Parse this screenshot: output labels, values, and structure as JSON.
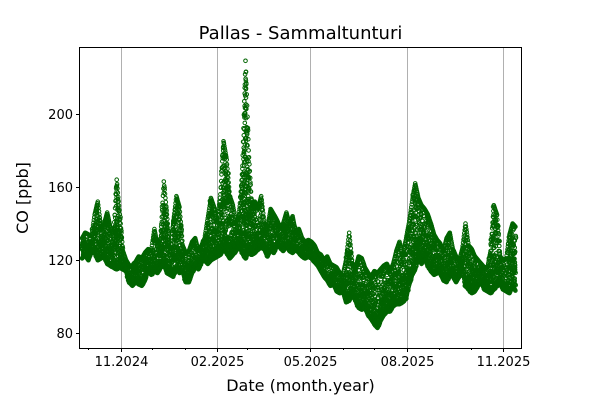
{
  "chart_data": {
    "type": "scatter",
    "title": "Pallas - Sammaltunturi",
    "xlabel": "Date (month.year)",
    "ylabel": "CO [ppb]",
    "x_range": [
      "2024-09-23",
      "2025-11-18"
    ],
    "ylim": [
      72,
      236
    ],
    "x_ticks": [
      "2024-11-01",
      "2025-02-01",
      "2025-05-01",
      "2025-08-01",
      "2025-11-01"
    ],
    "x_tick_labels": [
      "11.2024",
      "02.2025",
      "05.2025",
      "08.2025",
      "11.2025"
    ],
    "y_ticks": [
      80,
      120,
      160,
      200
    ],
    "y_tick_labels": [
      "80",
      "120",
      "160",
      "200"
    ],
    "grid": "vertical-major",
    "marker": "hollow-circle",
    "series": [
      {
        "color": "#006400",
        "x": [
          "2024-09-25",
          "2024-09-28",
          "2024-10-01",
          "2024-10-04",
          "2024-10-07",
          "2024-10-10",
          "2024-10-13",
          "2024-10-16",
          "2024-10-19",
          "2024-10-22",
          "2024-10-25",
          "2024-10-28",
          "2024-10-31",
          "2024-11-03",
          "2024-11-06",
          "2024-11-09",
          "2024-11-12",
          "2024-11-15",
          "2024-11-18",
          "2024-11-21",
          "2024-11-24",
          "2024-11-27",
          "2024-11-30",
          "2024-12-03",
          "2024-12-06",
          "2024-12-09",
          "2024-12-12",
          "2024-12-15",
          "2024-12-18",
          "2024-12-21",
          "2024-12-24",
          "2024-12-27",
          "2024-12-30",
          "2025-01-02",
          "2025-01-05",
          "2025-01-08",
          "2025-01-11",
          "2025-01-14",
          "2025-01-17",
          "2025-01-20",
          "2025-01-23",
          "2025-01-26",
          "2025-01-29",
          "2025-02-01",
          "2025-02-04",
          "2025-02-07",
          "2025-02-10",
          "2025-02-13",
          "2025-02-16",
          "2025-02-19",
          "2025-02-22",
          "2025-02-25",
          "2025-02-28",
          "2025-03-03",
          "2025-03-06",
          "2025-03-09",
          "2025-03-12",
          "2025-03-15",
          "2025-03-18",
          "2025-03-21",
          "2025-03-24",
          "2025-03-27",
          "2025-03-30",
          "2025-04-02",
          "2025-04-05",
          "2025-04-08",
          "2025-04-11",
          "2025-04-14",
          "2025-04-17",
          "2025-04-20",
          "2025-04-23",
          "2025-04-26",
          "2025-04-29",
          "2025-05-02",
          "2025-05-05",
          "2025-05-08",
          "2025-05-11",
          "2025-05-14",
          "2025-05-17",
          "2025-05-20",
          "2025-05-23",
          "2025-05-26",
          "2025-05-29",
          "2025-06-01",
          "2025-06-04",
          "2025-06-07",
          "2025-06-10",
          "2025-06-13",
          "2025-06-16",
          "2025-06-19",
          "2025-06-22",
          "2025-06-25",
          "2025-06-28",
          "2025-07-01",
          "2025-07-04",
          "2025-07-07",
          "2025-07-10",
          "2025-07-13",
          "2025-07-16",
          "2025-07-19",
          "2025-07-22",
          "2025-07-25",
          "2025-07-28",
          "2025-07-31",
          "2025-08-03",
          "2025-08-06",
          "2025-08-09",
          "2025-08-12",
          "2025-08-15",
          "2025-08-18",
          "2025-08-21",
          "2025-08-24",
          "2025-08-27",
          "2025-08-30",
          "2025-09-02",
          "2025-09-05",
          "2025-09-08",
          "2025-09-11",
          "2025-09-14",
          "2025-09-17",
          "2025-09-20",
          "2025-09-23",
          "2025-09-26",
          "2025-09-29",
          "2025-10-02",
          "2025-10-05",
          "2025-10-08",
          "2025-10-11",
          "2025-10-14",
          "2025-10-17",
          "2025-10-20",
          "2025-10-23",
          "2025-10-26",
          "2025-10-29",
          "2025-11-01",
          "2025-11-04",
          "2025-11-07",
          "2025-11-10",
          "2025-11-13"
        ],
        "low": [
          121,
          123,
          120,
          125,
          124,
          120,
          121,
          122,
          118,
          117,
          116,
          115,
          116,
          115,
          114,
          108,
          106,
          108,
          107,
          106,
          109,
          115,
          112,
          114,
          113,
          116,
          118,
          113,
          112,
          111,
          116,
          113,
          114,
          108,
          108,
          113,
          117,
          115,
          119,
          120,
          118,
          120,
          121,
          122,
          123,
          126,
          124,
          121,
          123,
          125,
          128,
          124,
          121,
          125,
          123,
          124,
          126,
          127,
          126,
          122,
          126,
          124,
          128,
          127,
          125,
          128,
          125,
          124,
          126,
          124,
          122,
          121,
          122,
          121,
          119,
          117,
          114,
          111,
          109,
          106,
          107,
          103,
          102,
          103,
          97,
          98,
          101,
          98,
          94,
          93,
          94,
          90,
          88,
          85,
          83,
          87,
          90,
          92,
          92,
          95,
          96,
          96,
          97,
          99,
          106,
          112,
          115,
          122,
          118,
          121,
          117,
          114,
          112,
          113,
          113,
          109,
          108,
          112,
          111,
          108,
          111,
          116,
          106,
          104,
          102,
          103,
          106,
          108,
          104,
          103,
          102,
          104,
          106,
          107,
          104,
          103,
          102,
          106,
          103
        ],
        "high": [
          132,
          135,
          134,
          133,
          145,
          152,
          138,
          140,
          146,
          138,
          133,
          164,
          145,
          125,
          120,
          117,
          117,
          119,
          122,
          121,
          124,
          126,
          125,
          137,
          128,
          132,
          163,
          145,
          125,
          140,
          155,
          149,
          128,
          124,
          125,
          130,
          132,
          125,
          128,
          132,
          143,
          154,
          149,
          141,
          156,
          185,
          175,
          155,
          150,
          140,
          145,
          170,
          229,
          180,
          150,
          152,
          148,
          155,
          140,
          138,
          148,
          145,
          142,
          138,
          140,
          146,
          140,
          144,
          135,
          137,
          132,
          130,
          131,
          130,
          128,
          124,
          123,
          120,
          122,
          118,
          117,
          116,
          113,
          112,
          120,
          135,
          118,
          116,
          122,
          121,
          116,
          113,
          111,
          114,
          113,
          115,
          117,
          118,
          114,
          118,
          125,
          130,
          122,
          131,
          140,
          152,
          162,
          154,
          150,
          148,
          145,
          140,
          134,
          131,
          129,
          125,
          132,
          135,
          126,
          122,
          120,
          126,
          140,
          128,
          126,
          122,
          120,
          118,
          116,
          116,
          125,
          150,
          145,
          122,
          120,
          121,
          134,
          140,
          138
        ]
      }
    ]
  }
}
